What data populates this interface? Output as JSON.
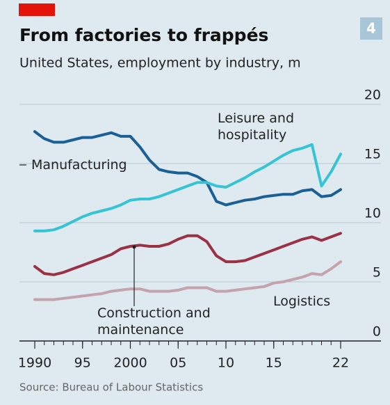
{
  "chart_data": {
    "type": "line",
    "title": "From factories to frappés",
    "subtitle": "United States, employment by industry, m",
    "badge": "4",
    "source": "Source: Bureau of Labour Statistics",
    "x": [
      1990,
      1991,
      1992,
      1993,
      1994,
      1995,
      1996,
      1997,
      1998,
      1999,
      2000,
      2001,
      2002,
      2003,
      2004,
      2005,
      2006,
      2007,
      2008,
      2009,
      2010,
      2011,
      2012,
      2013,
      2014,
      2015,
      2016,
      2017,
      2018,
      2019,
      2020,
      2021,
      2022
    ],
    "series": [
      {
        "name": "Manufacturing",
        "color": "#1a5f95",
        "values": [
          17.7,
          17.1,
          16.8,
          16.8,
          17.0,
          17.2,
          17.2,
          17.4,
          17.6,
          17.3,
          17.3,
          16.4,
          15.3,
          14.5,
          14.3,
          14.2,
          14.2,
          13.9,
          13.4,
          11.8,
          11.5,
          11.7,
          11.9,
          12.0,
          12.2,
          12.3,
          12.4,
          12.4,
          12.7,
          12.8,
          12.2,
          12.3,
          12.8
        ]
      },
      {
        "name": "Leisure and hospitality",
        "color": "#36c4d4",
        "values": [
          9.3,
          9.3,
          9.4,
          9.7,
          10.1,
          10.5,
          10.8,
          11.0,
          11.2,
          11.5,
          11.9,
          12.0,
          12.0,
          12.2,
          12.5,
          12.8,
          13.1,
          13.4,
          13.4,
          13.1,
          13.0,
          13.4,
          13.8,
          14.3,
          14.7,
          15.2,
          15.7,
          16.1,
          16.3,
          16.6,
          13.1,
          14.3,
          15.8
        ]
      },
      {
        "name": "Construction and maintenance",
        "color": "#9b3144",
        "values": [
          6.3,
          5.7,
          5.6,
          5.8,
          6.1,
          6.4,
          6.7,
          7.0,
          7.3,
          7.8,
          8.0,
          8.1,
          8.0,
          8.0,
          8.2,
          8.6,
          8.9,
          8.9,
          8.4,
          7.2,
          6.7,
          6.7,
          6.8,
          7.1,
          7.4,
          7.7,
          8.0,
          8.3,
          8.6,
          8.8,
          8.5,
          8.8,
          9.1
        ]
      },
      {
        "name": "Logistics",
        "color": "#c4a3ad",
        "values": [
          3.5,
          3.5,
          3.5,
          3.6,
          3.7,
          3.8,
          3.9,
          4.0,
          4.2,
          4.3,
          4.4,
          4.4,
          4.2,
          4.2,
          4.2,
          4.3,
          4.5,
          4.5,
          4.5,
          4.2,
          4.2,
          4.3,
          4.4,
          4.5,
          4.6,
          4.9,
          5.0,
          5.2,
          5.4,
          5.7,
          5.6,
          6.1,
          6.7
        ]
      }
    ],
    "xlim": [
      1990,
      2022
    ],
    "xticks": [
      1990,
      {
        "value": 1995,
        "label": "95"
      },
      2000,
      {
        "value": 2005,
        "label": "05"
      },
      {
        "value": 2010,
        "label": "10"
      },
      {
        "value": 2015,
        "label": "15"
      },
      {
        "value": 2022,
        "label": "22"
      }
    ],
    "ylim": [
      0,
      20
    ],
    "yticks": [
      0,
      5,
      10,
      15,
      20
    ],
    "grid": true
  }
}
